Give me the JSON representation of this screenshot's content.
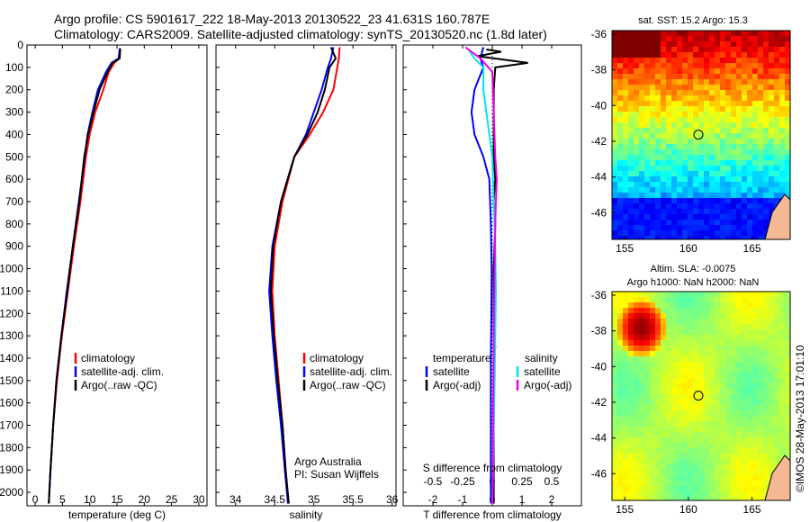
{
  "header": {
    "line1": "Argo profile: CS 5901617_222 18-May-2013 20130522_23 41.631S 160.787E",
    "line2": "Climatology: CARS2009. Satellite-adjusted climatology: synTS_20130520.nc (1.8d later)"
  },
  "colors": {
    "climatology": "#ff0000",
    "satellite": "#0000ff",
    "argo": "#000000",
    "s_satellite": "#00e5ee",
    "s_argo": "#ee00ee"
  },
  "chart_data": [
    {
      "type": "line",
      "panel": "temperature",
      "xlabel": "temperature (deg C)",
      "ylabel": "",
      "xlim": [
        -1.5,
        31.5
      ],
      "ylim": [
        2060,
        0
      ],
      "y_reversed": true,
      "x_ticks": [
        "0",
        "5",
        "10",
        "15",
        "20",
        "25",
        "30"
      ],
      "y_ticks": [
        "0",
        "100",
        "200",
        "300",
        "400",
        "500",
        "600",
        "700",
        "800",
        "900",
        "1000",
        "1100",
        "1200",
        "1300",
        "1400",
        "1500",
        "1600",
        "1700",
        "1800",
        "1900",
        "2000"
      ],
      "legend": [
        "climatology",
        "satellite-adj. clim.",
        "Argo(..raw -QC)"
      ],
      "legend_position": "lower-middle",
      "series": [
        {
          "name": "climatology",
          "color_key": "climatology",
          "points": [
            [
              15.5,
              15
            ],
            [
              15.4,
              60
            ],
            [
              14.5,
              80
            ],
            [
              13.5,
              120
            ],
            [
              12.5,
              200
            ],
            [
              11.0,
              300
            ],
            [
              10.0,
              400
            ],
            [
              9.3,
              500
            ],
            [
              8.3,
              700
            ],
            [
              7.1,
              900
            ],
            [
              6.0,
              1100
            ],
            [
              4.9,
              1300
            ],
            [
              4.0,
              1500
            ],
            [
              3.3,
              1700
            ],
            [
              2.8,
              1900
            ],
            [
              2.5,
              2050
            ]
          ]
        },
        {
          "name": "satellite-adj. clim.",
          "color_key": "satellite",
          "points": [
            [
              15.5,
              15
            ],
            [
              15.3,
              60
            ],
            [
              14.0,
              80
            ],
            [
              13.0,
              120
            ],
            [
              11.5,
              200
            ],
            [
              10.5,
              300
            ],
            [
              9.6,
              400
            ],
            [
              9.1,
              500
            ],
            [
              8.0,
              700
            ],
            [
              6.9,
              900
            ],
            [
              5.8,
              1100
            ],
            [
              4.8,
              1300
            ],
            [
              3.9,
              1500
            ],
            [
              3.3,
              1700
            ],
            [
              2.8,
              1900
            ],
            [
              2.5,
              2050
            ]
          ]
        },
        {
          "name": "Argo(..raw -QC)",
          "color_key": "argo",
          "points": [
            [
              15.6,
              15
            ],
            [
              15.5,
              60
            ],
            [
              14.2,
              80
            ],
            [
              13.3,
              120
            ],
            [
              11.8,
              200
            ],
            [
              10.7,
              300
            ],
            [
              9.7,
              400
            ],
            [
              9.0,
              500
            ],
            [
              8.1,
              700
            ],
            [
              6.9,
              900
            ],
            [
              5.9,
              1100
            ],
            [
              4.8,
              1300
            ],
            [
              3.9,
              1500
            ],
            [
              3.3,
              1700
            ],
            [
              2.8,
              1900
            ],
            [
              2.5,
              2050
            ]
          ]
        }
      ]
    },
    {
      "type": "line",
      "panel": "salinity",
      "xlabel": "salinity",
      "ylabel": "",
      "xlim": [
        33.75,
        36.05
      ],
      "ylim": [
        2060,
        0
      ],
      "y_reversed": true,
      "x_ticks": [
        "34",
        "34.5",
        "35",
        "35.5",
        "36"
      ],
      "legend": [
        "climatology",
        "satellite-adj. clim.",
        "Argo(..raw -QC)"
      ],
      "legend_position": "lower-right",
      "annotation": [
        "Argo Australia",
        "PI: Susan Wijffels"
      ],
      "series": [
        {
          "name": "climatology",
          "color_key": "climatology",
          "points": [
            [
              35.33,
              10
            ],
            [
              35.32,
              60
            ],
            [
              35.3,
              100
            ],
            [
              35.25,
              200
            ],
            [
              35.12,
              300
            ],
            [
              34.95,
              400
            ],
            [
              34.75,
              500
            ],
            [
              34.6,
              700
            ],
            [
              34.5,
              900
            ],
            [
              34.47,
              1100
            ],
            [
              34.5,
              1300
            ],
            [
              34.55,
              1500
            ],
            [
              34.6,
              1700
            ],
            [
              34.64,
              1900
            ],
            [
              34.67,
              2050
            ]
          ]
        },
        {
          "name": "satellite-adj. clim.",
          "color_key": "satellite",
          "points": [
            [
              35.25,
              10
            ],
            [
              35.22,
              60
            ],
            [
              35.18,
              100
            ],
            [
              35.1,
              200
            ],
            [
              35.0,
              300
            ],
            [
              34.9,
              400
            ],
            [
              34.75,
              500
            ],
            [
              34.58,
              700
            ],
            [
              34.47,
              900
            ],
            [
              34.43,
              1100
            ],
            [
              34.47,
              1300
            ],
            [
              34.52,
              1500
            ],
            [
              34.58,
              1700
            ],
            [
              34.63,
              1900
            ],
            [
              34.67,
              2050
            ]
          ]
        },
        {
          "name": "Argo(..raw -QC)",
          "color_key": "argo",
          "points": [
            [
              35.22,
              10
            ],
            [
              35.28,
              60
            ],
            [
              35.2,
              100
            ],
            [
              35.14,
              200
            ],
            [
              35.05,
              300
            ],
            [
              34.92,
              400
            ],
            [
              34.75,
              500
            ],
            [
              34.58,
              700
            ],
            [
              34.48,
              900
            ],
            [
              34.45,
              1100
            ],
            [
              34.49,
              1300
            ],
            [
              34.54,
              1500
            ],
            [
              34.6,
              1700
            ],
            [
              34.64,
              1900
            ],
            [
              34.68,
              2050
            ]
          ]
        }
      ]
    },
    {
      "type": "line",
      "panel": "difference",
      "xlabel": "T difference from climatology",
      "xlabel_top": "S difference from climatology",
      "ylabel": "",
      "xlim": [
        -3,
        3
      ],
      "ylim": [
        2060,
        0
      ],
      "y_reversed": true,
      "x_ticks": [
        "-2",
        "-1",
        "0",
        "1",
        "2"
      ],
      "s_ticks": [
        "-0.5",
        "-0.25",
        "0",
        "0.25",
        "0.5"
      ],
      "legend": [
        "temperature",
        "satellite",
        "Argo(-adj)",
        "salinity",
        "satellite",
        "Argo(-adj)"
      ],
      "legend_position": "lower-middle",
      "series": [
        {
          "name": "satellite",
          "group": "temperature",
          "color_key": "satellite",
          "points": [
            [
              -0.3,
              10
            ],
            [
              -0.4,
              60
            ],
            [
              -0.3,
              100
            ],
            [
              -0.6,
              200
            ],
            [
              -0.7,
              300
            ],
            [
              -0.6,
              400
            ],
            [
              -0.3,
              500
            ],
            [
              -0.1,
              600
            ],
            [
              -0.05,
              800
            ],
            [
              -0.02,
              1000
            ],
            [
              -0.03,
              1200
            ],
            [
              -0.05,
              1400
            ],
            [
              -0.05,
              1600
            ],
            [
              -0.05,
              1800
            ],
            [
              -0.05,
              2050
            ]
          ]
        },
        {
          "name": "Argo(-adj)",
          "group": "temperature",
          "color_key": "argo",
          "points": [
            [
              -0.2,
              20
            ],
            [
              0.3,
              30
            ],
            [
              -0.5,
              50
            ],
            [
              1.2,
              80
            ],
            [
              0.1,
              100
            ],
            [
              0.05,
              200
            ],
            [
              0.05,
              500
            ],
            [
              0.1,
              600
            ],
            [
              0.05,
              700
            ],
            [
              0.1,
              800
            ],
            [
              0.05,
              1000
            ],
            [
              0.05,
              1300
            ],
            [
              0.1,
              1350
            ],
            [
              0.05,
              1400
            ],
            [
              0.05,
              2050
            ]
          ]
        },
        {
          "name": "satellite",
          "group": "salinity",
          "color_key": "s_satellite",
          "points": [
            [
              -0.8,
              20
            ],
            [
              -0.6,
              60
            ],
            [
              -0.3,
              100
            ],
            [
              -0.3,
              200
            ],
            [
              -0.2,
              300
            ],
            [
              -0.1,
              400
            ],
            [
              0.0,
              500
            ],
            [
              0.05,
              700
            ],
            [
              0.1,
              900
            ],
            [
              0.12,
              1100
            ],
            [
              0.1,
              1300
            ],
            [
              0.08,
              1500
            ],
            [
              0.05,
              1700
            ],
            [
              0.03,
              1900
            ],
            [
              0.0,
              2050
            ]
          ]
        },
        {
          "name": "Argo(-adj)",
          "group": "salinity",
          "color_key": "s_argo",
          "points": [
            [
              -0.9,
              10
            ],
            [
              -0.4,
              60
            ],
            [
              0.0,
              120
            ],
            [
              0.05,
              300
            ],
            [
              0.1,
              500
            ],
            [
              0.15,
              600
            ],
            [
              0.12,
              700
            ],
            [
              0.1,
              800
            ],
            [
              0.08,
              1000
            ],
            [
              0.05,
              1300
            ],
            [
              0.03,
              1600
            ],
            [
              0.02,
              1900
            ],
            [
              0.0,
              2050
            ]
          ]
        }
      ]
    },
    {
      "type": "heatmap",
      "panel": "sst-map",
      "title": "sat. SST: 15.2 Argo: 15.3",
      "xlim": [
        154,
        168
      ],
      "ylim": [
        -47.5,
        -35.8
      ],
      "x_ticks": [
        "155",
        "160",
        "165"
      ],
      "y_ticks": [
        "-36",
        "-38",
        "-40",
        "-42",
        "-44",
        "-46"
      ],
      "profile_marker": {
        "lon": 160.787,
        "lat": -41.631
      },
      "palette": "jet"
    },
    {
      "type": "heatmap",
      "panel": "sla-map",
      "title": "Altim. SLA: -0.0075",
      "subtitle": "Argo h1000: NaN h2000: NaN",
      "xlim": [
        154,
        168
      ],
      "ylim": [
        -47.5,
        -35.8
      ],
      "x_ticks": [
        "155",
        "160",
        "165"
      ],
      "y_ticks": [
        "-36",
        "-38",
        "-40",
        "-42",
        "-44",
        "-46"
      ],
      "profile_marker": {
        "lon": 160.787,
        "lat": -41.631
      },
      "palette": "jet"
    }
  ],
  "stamp": "©IMOS 28-May-2013 17:01:10"
}
